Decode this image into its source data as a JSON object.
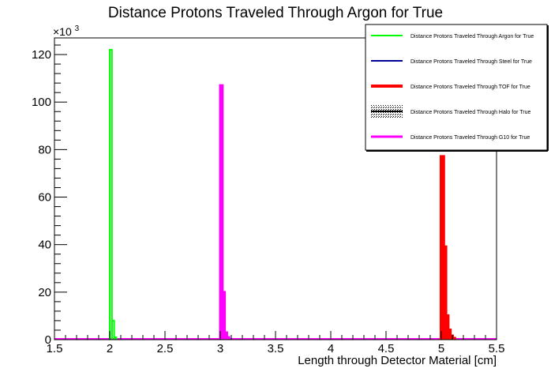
{
  "chart_data": {
    "type": "histogram",
    "title": "Distance Protons Traveled Through Argon for True",
    "xlabel": "Length through Detector Material [cm]",
    "ylabel": "",
    "y_multiplier_label": "×10",
    "y_multiplier_exp": "3",
    "xlim": [
      1.5,
      5.5
    ],
    "ylim": [
      0,
      127
    ],
    "x_ticks": [
      "1.5",
      "2",
      "2.5",
      "3",
      "3.5",
      "4",
      "4.5",
      "5",
      "5.5"
    ],
    "y_ticks": [
      "0",
      "20",
      "40",
      "60",
      "80",
      "100",
      "120"
    ],
    "bin_width": 0.02,
    "legend_position": "top-right",
    "series": [
      {
        "name": "Distance Protons Traveled Through Argon for True",
        "color": "#00ff00",
        "bins": [
          [
            2.0,
            122
          ],
          [
            2.02,
            8
          ],
          [
            2.04,
            1
          ]
        ]
      },
      {
        "name": "Distance Protons Traveled Through Steel for True",
        "color": "#000099",
        "bins": []
      },
      {
        "name": "Distance Protons Traveled Through TOF for True",
        "color": "#ff0000",
        "bins": [
          [
            5.0,
            77
          ],
          [
            5.02,
            39
          ],
          [
            5.04,
            10
          ],
          [
            5.06,
            4
          ],
          [
            5.08,
            1.5
          ],
          [
            5.1,
            0.5
          ]
        ]
      },
      {
        "name": "Distance Protons Traveled Through Halo for True",
        "color": "#000000",
        "bins": []
      },
      {
        "name": "Distance Protons Traveled Through G10 for True",
        "color": "#ff00ff",
        "bins": [
          [
            3.0,
            107
          ],
          [
            3.02,
            20
          ],
          [
            3.04,
            3
          ],
          [
            3.06,
            1
          ]
        ]
      }
    ]
  }
}
